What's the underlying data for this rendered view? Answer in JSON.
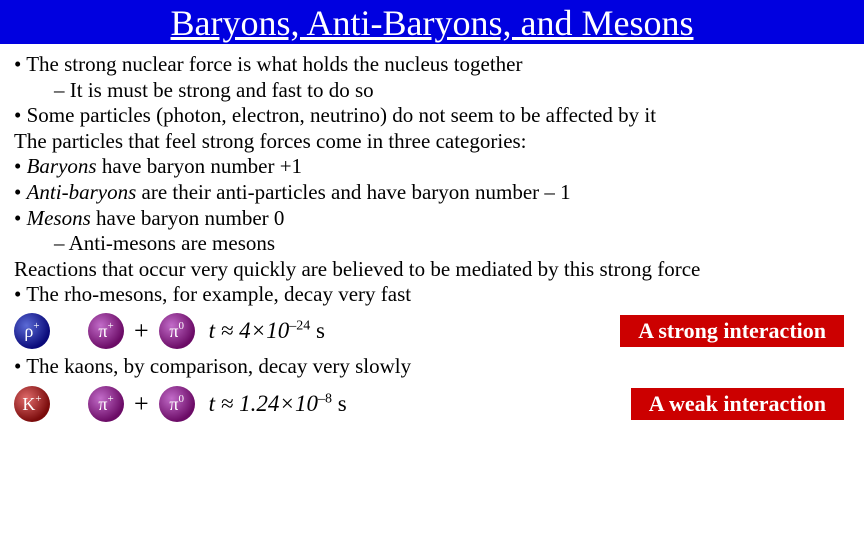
{
  "title_bar": {
    "background": "#0000e0"
  },
  "title": "Baryons, Anti-Baryons, and Mesons",
  "bullets": {
    "b1": "The strong nuclear force is what holds the nucleus together",
    "b1a": "It is must be strong and fast to do so",
    "b2": "Some particles (photon, electron, neutrino) do not seem to be affected by it",
    "line1": "The particles that feel strong forces come in three categories:",
    "b3a_i": "Baryons",
    "b3a_t": " have baryon number +1",
    "b3b_i": "Anti-baryons",
    "b3b_t": " are their anti-particles and have baryon number – 1",
    "b3c_i": "Mesons",
    "b3c_t": " have baryon number 0",
    "b3c1": "Anti-mesons are mesons",
    "line2": "Reactions that occur very quickly are believed to be mediated by this strong force",
    "b4": "The rho-mesons, for example, decay very fast",
    "b5": "The kaons, by comparison, decay very slowly"
  },
  "reaction1": {
    "p1": {
      "sym": "ρ",
      "sup": "+",
      "cls": "grad-blue"
    },
    "p2": {
      "sym": "π",
      "sup": "+",
      "cls": "grad-purple"
    },
    "p3": {
      "sym": "π",
      "sup": "0",
      "cls": "grad-purple"
    },
    "eq_pre": "t ≈ 4×10",
    "eq_exp": "–24",
    "eq_post": " s",
    "box": "A strong interaction"
  },
  "reaction2": {
    "p1": {
      "sym": "K",
      "sup": "+",
      "cls": "grad-red"
    },
    "p2": {
      "sym": "π",
      "sup": "+",
      "cls": "grad-purple"
    },
    "p3": {
      "sym": "π",
      "sup": "0",
      "cls": "grad-purple"
    },
    "eq_pre": "t ≈ 1.24×10",
    "eq_exp": "–8",
    "eq_post": " s",
    "box": "A weak interaction"
  },
  "colors": {
    "redbox": "#cc0000"
  }
}
